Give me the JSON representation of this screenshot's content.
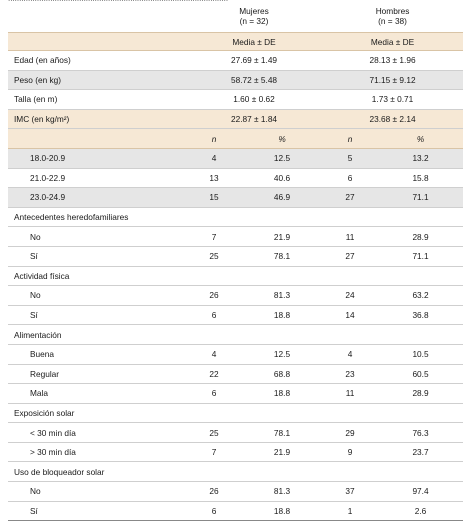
{
  "header": {
    "top_clip": "...................................................................................................",
    "mujeres": "Mujeres",
    "mujeres_n": "(n = 32)",
    "hombres": "Hombres",
    "hombres_n": "(n = 38)",
    "media_de": "Media ± DE"
  },
  "summary_rows": [
    {
      "label": "Edad (en años)",
      "mujeres": "27.69 ± 1.49",
      "hombres": "28.13 ± 1.96"
    },
    {
      "label": "Peso (en kg)",
      "mujeres": "58.72 ± 5.48",
      "hombres": "71.15 ± 9.12"
    },
    {
      "label": "Talla (en m)",
      "mujeres": "1.60 ± 0.62",
      "hombres": "1.73 ± 0.71"
    },
    {
      "label": "IMC (en kg/m²)",
      "mujeres": "22.87 ± 1.84",
      "hombres": "23.68 ± 2.14"
    }
  ],
  "subheader": {
    "n": "n",
    "pct": "%"
  },
  "imc_rows": [
    {
      "label": "18.0-20.9",
      "m_n": "4",
      "m_pct": "12.5",
      "h_n": "5",
      "h_pct": "13.2"
    },
    {
      "label": "21.0-22.9",
      "m_n": "13",
      "m_pct": "40.6",
      "h_n": "6",
      "h_pct": "15.8"
    },
    {
      "label": "23.0-24.9",
      "m_n": "15",
      "m_pct": "46.9",
      "h_n": "27",
      "h_pct": "71.1"
    }
  ],
  "sections": [
    {
      "title": "Antecedentes heredofamiliares",
      "rows": [
        {
          "label": "No",
          "m_n": "7",
          "m_pct": "21.9",
          "h_n": "11",
          "h_pct": "28.9"
        },
        {
          "label": "Sí",
          "m_n": "25",
          "m_pct": "78.1",
          "h_n": "27",
          "h_pct": "71.1"
        }
      ]
    },
    {
      "title": "Actividad física",
      "rows": [
        {
          "label": "No",
          "m_n": "26",
          "m_pct": "81.3",
          "h_n": "24",
          "h_pct": "63.2"
        },
        {
          "label": "Sí",
          "m_n": "6",
          "m_pct": "18.8",
          "h_n": "14",
          "h_pct": "36.8"
        }
      ]
    },
    {
      "title": "Alimentación",
      "rows": [
        {
          "label": "Buena",
          "m_n": "4",
          "m_pct": "12.5",
          "h_n": "4",
          "h_pct": "10.5"
        },
        {
          "label": "Regular",
          "m_n": "22",
          "m_pct": "68.8",
          "h_n": "23",
          "h_pct": "60.5"
        },
        {
          "label": "Mala",
          "m_n": "6",
          "m_pct": "18.8",
          "h_n": "11",
          "h_pct": "28.9"
        }
      ]
    },
    {
      "title": "Exposición solar",
      "rows": [
        {
          "label": "< 30 min día",
          "m_n": "25",
          "m_pct": "78.1",
          "h_n": "29",
          "h_pct": "76.3"
        },
        {
          "label": "> 30 min día",
          "m_n": "7",
          "m_pct": "21.9",
          "h_n": "9",
          "h_pct": "23.7"
        }
      ]
    },
    {
      "title": "Uso de bloqueador solar",
      "rows": [
        {
          "label": "No",
          "m_n": "26",
          "m_pct": "81.3",
          "h_n": "37",
          "h_pct": "97.4"
        },
        {
          "label": "Sí",
          "m_n": "6",
          "m_pct": "18.8",
          "h_n": "1",
          "h_pct": "2.6"
        }
      ]
    }
  ]
}
